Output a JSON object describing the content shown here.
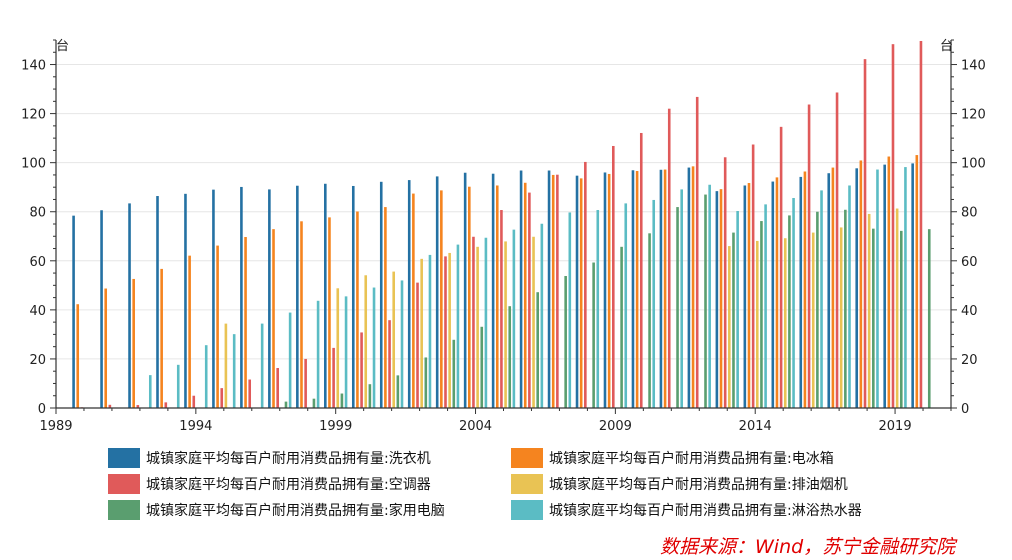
{
  "chart_data": {
    "type": "bar",
    "x": [
      1990,
      1991,
      1992,
      1993,
      1994,
      1995,
      1996,
      1997,
      1998,
      1999,
      2000,
      2001,
      2002,
      2003,
      2004,
      2005,
      2006,
      2007,
      2008,
      2009,
      2010,
      2011,
      2012,
      2013,
      2014,
      2015,
      2016,
      2017,
      2018,
      2019,
      2020
    ],
    "xticks": [
      "1989",
      "1994",
      "1999",
      "2004",
      "2009",
      "2014",
      "2019"
    ],
    "xlim": [
      1989,
      2021
    ],
    "ylim": [
      0,
      150
    ],
    "yticks": [
      "0",
      "20",
      "40",
      "60",
      "80",
      "100",
      "120",
      "140"
    ],
    "ylabel_left": "台",
    "ylabel_right": "台",
    "grid": true,
    "legend_position": "bottom",
    "series": [
      {
        "name": "城镇家庭平均每百户耐用消费品拥有量:洗衣机",
        "color": "#2471a3",
        "values": [
          78.4,
          80.6,
          83.4,
          86.4,
          87.3,
          89.0,
          90.1,
          89.1,
          90.6,
          91.4,
          90.5,
          92.2,
          92.9,
          94.4,
          95.9,
          95.5,
          96.8,
          96.8,
          94.7,
          96.0,
          96.9,
          97.1,
          98.0,
          88.4,
          90.7,
          92.3,
          94.2,
          95.7,
          97.7,
          99.2,
          99.7
        ]
      },
      {
        "name": "城镇家庭平均每百户耐用消费品拥有量:电冰箱",
        "color": "#f5841f",
        "values": [
          42.3,
          48.7,
          52.6,
          56.7,
          62.1,
          66.2,
          69.7,
          72.9,
          76.1,
          77.7,
          80.1,
          81.9,
          87.4,
          88.7,
          90.2,
          90.7,
          91.8,
          95.0,
          93.6,
          95.4,
          96.6,
          97.2,
          98.5,
          89.2,
          91.7,
          94.0,
          96.4,
          98.0,
          100.9,
          102.5,
          103.1
        ]
      },
      {
        "name": "城镇家庭平均每百户耐用消费品拥有量:空调器",
        "color": "#e05a5a",
        "values": [
          0.3,
          1.3,
          1.2,
          2.3,
          5.0,
          8.1,
          11.6,
          16.3,
          20.0,
          24.5,
          30.8,
          35.8,
          51.1,
          61.8,
          69.8,
          80.7,
          87.8,
          95.1,
          100.3,
          106.8,
          112.1,
          122.0,
          126.8,
          102.2,
          107.4,
          114.6,
          123.7,
          128.6,
          142.2,
          148.3,
          149.6
        ]
      },
      {
        "name": "城镇家庭平均每百户耐用消费品拥有量:排油烟机",
        "color": "#e9c354",
        "values": [
          null,
          null,
          null,
          null,
          null,
          34.4,
          null,
          null,
          null,
          48.8,
          54.1,
          55.6,
          60.8,
          63.2,
          65.7,
          67.9,
          69.8,
          null,
          null,
          null,
          null,
          null,
          null,
          66.0,
          68.1,
          69.2,
          71.5,
          73.6,
          79.1,
          81.3,
          null
        ]
      },
      {
        "name": "城镇家庭平均每百户耐用消费品拥有量:家用电脑",
        "color": "#5a9e6f",
        "values": [
          null,
          null,
          null,
          null,
          null,
          null,
          null,
          2.6,
          3.8,
          5.9,
          9.7,
          13.3,
          20.6,
          27.8,
          33.1,
          41.5,
          47.2,
          53.8,
          59.3,
          65.7,
          71.2,
          81.9,
          87.0,
          71.5,
          76.2,
          78.5,
          80.0,
          80.8,
          73.1,
          72.2,
          72.9
        ]
      },
      {
        "name": "城镇家庭平均每百户耐用消费品拥有量:淋浴热水器",
        "color": "#5bbcc4",
        "values": [
          null,
          null,
          13.4,
          17.6,
          25.6,
          30.1,
          34.4,
          38.9,
          43.7,
          45.5,
          49.1,
          52.0,
          62.4,
          66.6,
          69.4,
          72.7,
          75.1,
          79.7,
          80.7,
          83.4,
          84.8,
          89.1,
          91.0,
          80.3,
          83.0,
          85.6,
          88.7,
          90.7,
          97.2,
          98.2,
          null
        ]
      }
    ]
  },
  "source": "数据来源：Wind，苏宁金融研究院"
}
